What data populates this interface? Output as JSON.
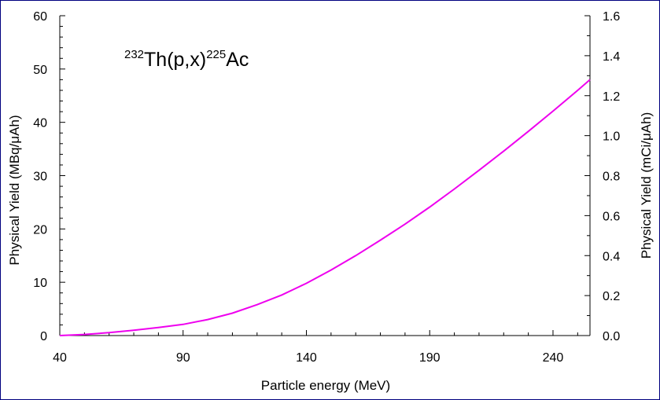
{
  "chart_data": {
    "type": "line",
    "annotation": {
      "sup1": "232",
      "mid": "Th(p,x)",
      "sup2": "225",
      "end": "Ac"
    },
    "xlabel": "Particle energy (MeV)",
    "ylabel": "Physical Yield (MBq/μAh)",
    "y2label": "Physical Yield (mCi/μAh)",
    "xlim": [
      40,
      255
    ],
    "ylim": [
      0,
      60
    ],
    "y2lim": [
      0,
      1.6
    ],
    "xticks": [
      40,
      90,
      140,
      190,
      240
    ],
    "yticks": [
      0,
      10,
      20,
      30,
      40,
      50,
      60
    ],
    "y2ticks": [
      "0.0",
      "0.2",
      "0.4",
      "0.6",
      "0.8",
      "1.0",
      "1.2",
      "1.4",
      "1.6"
    ],
    "grid": false,
    "series": [
      {
        "color": "#ee00ee",
        "x": [
          40,
          50,
          60,
          70,
          80,
          90,
          100,
          110,
          120,
          130,
          140,
          150,
          160,
          170,
          180,
          190,
          200,
          210,
          220,
          230,
          240,
          250,
          255
        ],
        "y": [
          0.0,
          0.2,
          0.55,
          1.0,
          1.5,
          2.1,
          3.0,
          4.2,
          5.8,
          7.6,
          9.8,
          12.3,
          15.0,
          17.9,
          20.9,
          24.1,
          27.5,
          31.0,
          34.6,
          38.3,
          42.1,
          46.0,
          48.0
        ]
      }
    ]
  }
}
